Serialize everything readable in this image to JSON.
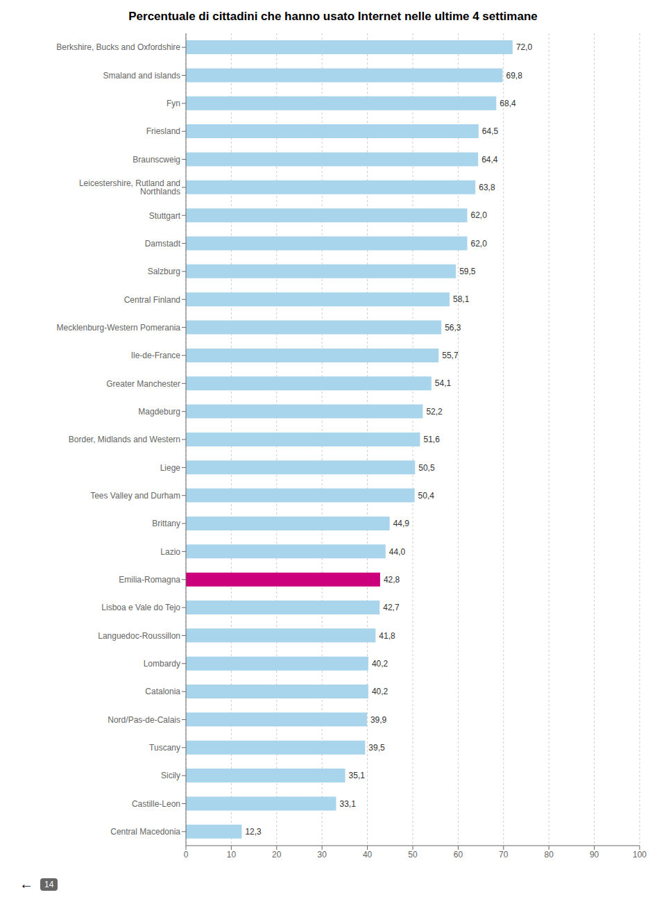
{
  "chart_data": {
    "type": "bar",
    "orientation": "horizontal",
    "title": "Percentuale di cittadini che hanno usato Internet nelle ultime 4 settimane",
    "categories": [
      "Berkshire, Bucks and Oxfordshire",
      "Smaland and islands",
      "Fyn",
      "Friesland",
      "Braunscweig",
      "Leicestershire, Rutland and Northlands",
      "Stuttgart",
      "Damstadt",
      "Salzburg",
      "Central Finland",
      "Mecklenburg-Western Pomerania",
      "Ile-de-France",
      "Greater Manchester",
      "Magdeburg",
      "Border, Midlands and Western",
      "Liege",
      "Tees Valley and Durham",
      "Brittany",
      "Lazio",
      "Emilia-Romagna",
      "Lisboa e Vale do Tejo",
      "Languedoc-Roussillon",
      "Lombardy",
      "Catalonia",
      "Nord/Pas-de-Calais",
      "Tuscany",
      "Sicily",
      "Castille-Leon",
      "Central Macedonia"
    ],
    "values": [
      72.0,
      69.8,
      68.4,
      64.5,
      64.4,
      63.8,
      62.0,
      62.0,
      59.5,
      58.1,
      56.3,
      55.7,
      54.1,
      52.2,
      51.6,
      50.5,
      50.4,
      44.9,
      44.0,
      42.8,
      42.7,
      41.8,
      40.2,
      40.2,
      39.9,
      39.5,
      35.1,
      33.1,
      12.3
    ],
    "value_labels": [
      "72,0",
      "69,8",
      "68,4",
      "64,5",
      "64,4",
      "63,8",
      "62,0",
      "62,0",
      "59,5",
      "58,1",
      "56,3",
      "55,7",
      "54,1",
      "52,2",
      "51,6",
      "50,5",
      "50,4",
      "44,9",
      "44,0",
      "42,8",
      "42,7",
      "41,8",
      "40,2",
      "40,2",
      "39,9",
      "39,5",
      "35,1",
      "33,1",
      "12,3"
    ],
    "data_labels": true,
    "colors": [
      "#A8D4EC",
      "#A8D4EC",
      "#A8D4EC",
      "#A8D4EC",
      "#A8D4EC",
      "#A8D4EC",
      "#A8D4EC",
      "#A8D4EC",
      "#A8D4EC",
      "#A8D4EC",
      "#A8D4EC",
      "#A8D4EC",
      "#A8D4EC",
      "#A8D4EC",
      "#A8D4EC",
      "#A8D4EC",
      "#A8D4EC",
      "#A8D4EC",
      "#A8D4EC",
      "#CC007A",
      "#A8D4EC",
      "#A8D4EC",
      "#A8D4EC",
      "#A8D4EC",
      "#A8D4EC",
      "#A8D4EC",
      "#A8D4EC",
      "#A8D4EC",
      "#A8D4EC"
    ],
    "xlim": [
      0,
      100
    ],
    "xticks": [
      0,
      10,
      20,
      30,
      40,
      50,
      60,
      70,
      80,
      90,
      100
    ],
    "grid": true,
    "annotations": [
      "←",
      "14"
    ]
  }
}
